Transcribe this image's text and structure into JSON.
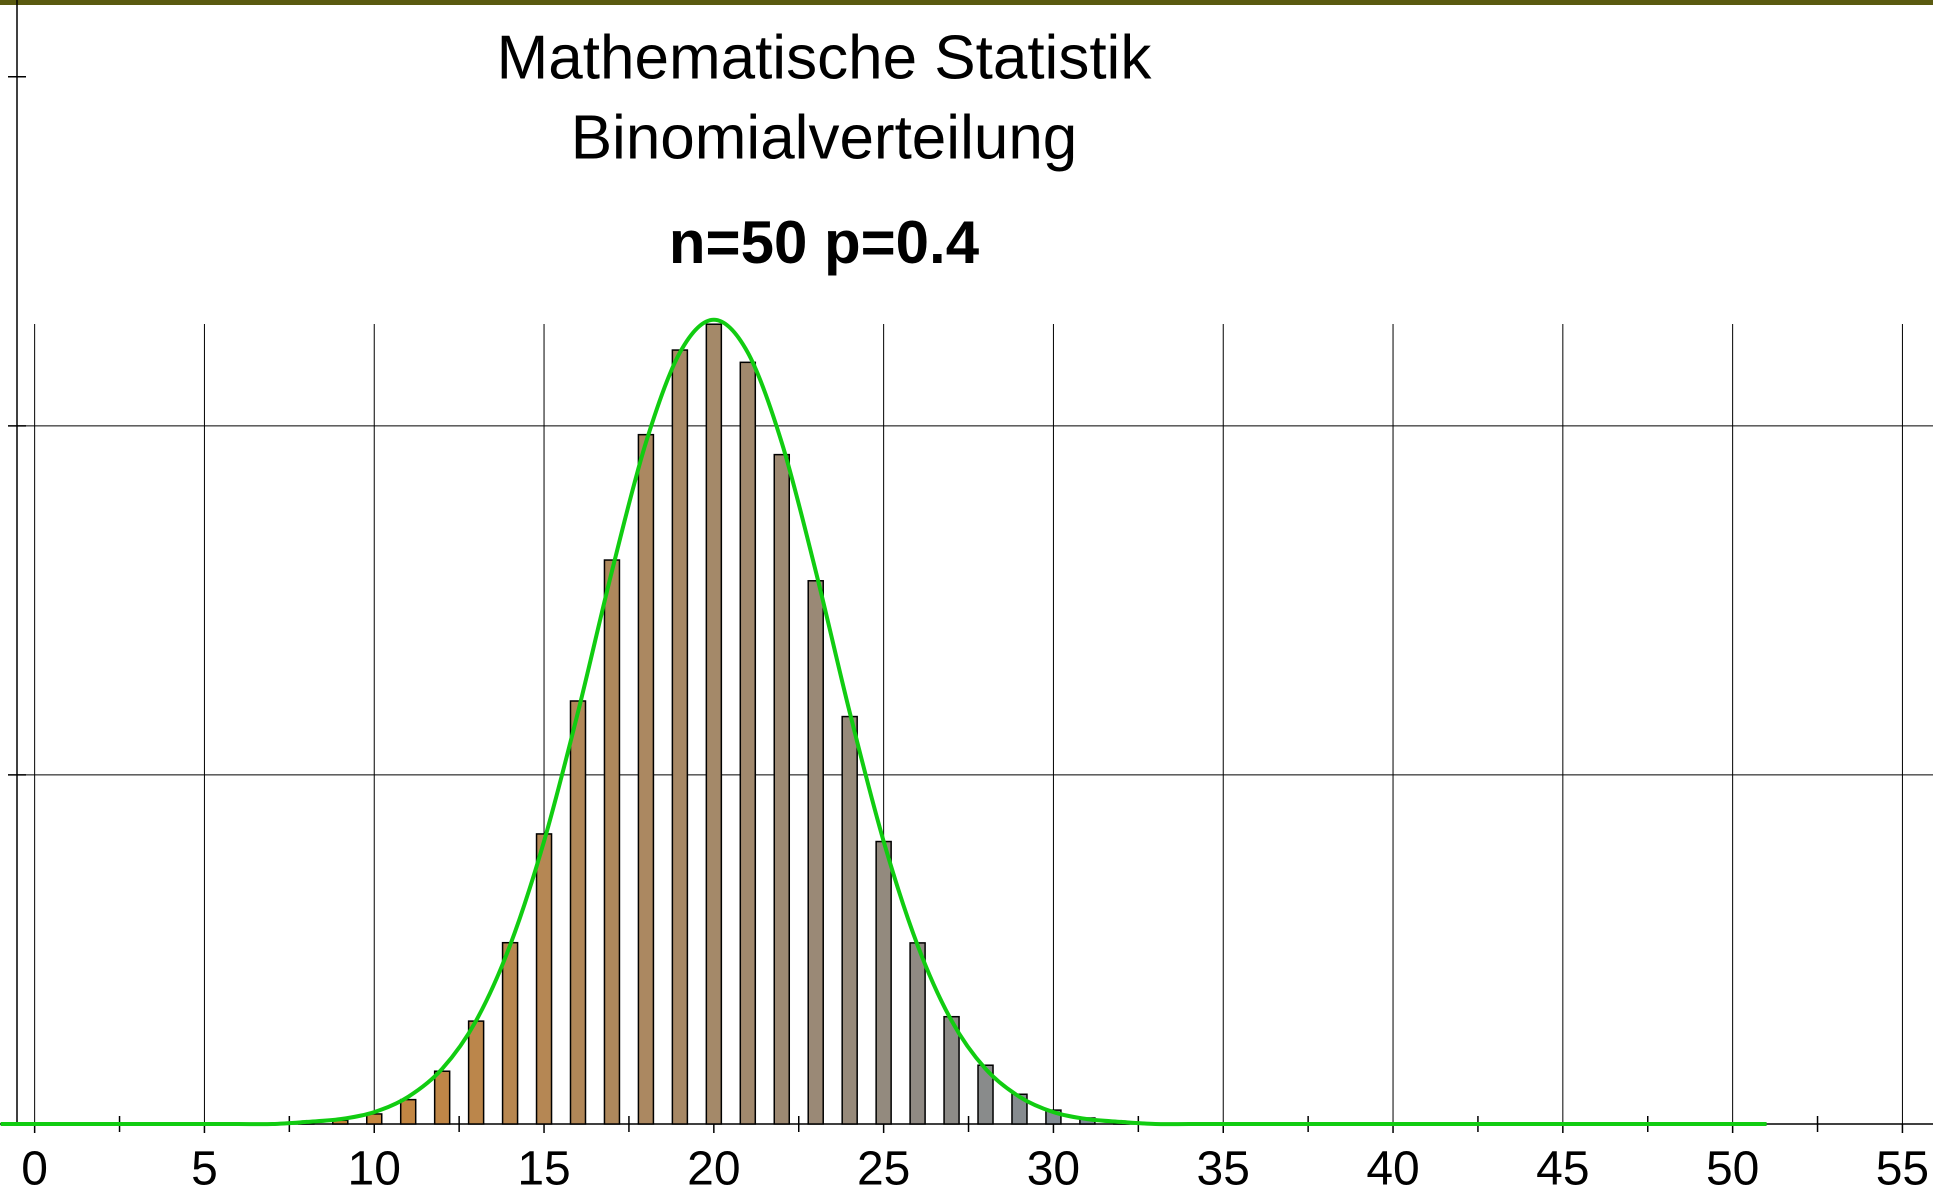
{
  "chart_data": {
    "type": "bar",
    "title": "Mathematische Statistik",
    "subtitle": "Binomialverteilung",
    "annotation": "n=50 p=0.4",
    "categories": [
      8,
      9,
      10,
      11,
      12,
      13,
      14,
      15,
      16,
      17,
      18,
      19,
      20,
      21,
      22,
      23,
      24,
      25,
      26,
      27,
      28,
      29,
      30,
      31,
      32
    ],
    "values": [
      0.00017,
      0.00053,
      0.00144,
      0.00349,
      0.00756,
      0.01474,
      0.02597,
      0.04155,
      0.06059,
      0.08078,
      0.09874,
      0.11086,
      0.11456,
      0.1091,
      0.09588,
      0.07781,
      0.05836,
      0.04046,
      0.02594,
      0.01537,
      0.00842,
      0.00426,
      0.00199,
      0.00086,
      0.00034
    ],
    "color_gradient": [
      "#cc8536",
      "#7c8c9c"
    ],
    "curve": {
      "color": "#11cc11",
      "x": [
        -1,
        0,
        1,
        2,
        3,
        4,
        5,
        6,
        7,
        8,
        9,
        10,
        11,
        12,
        13,
        14,
        15,
        16,
        17,
        18,
        19,
        20,
        21,
        22,
        23,
        24,
        25,
        26,
        27,
        28,
        29,
        30,
        31,
        32,
        33,
        34,
        35,
        36,
        37,
        38,
        39,
        40,
        41,
        42,
        43,
        44,
        45,
        46,
        47,
        48,
        49,
        50,
        51
      ],
      "values": [
        0,
        0,
        0,
        0,
        0,
        0,
        0,
        0,
        0,
        0.0003,
        0.0007,
        0.0017,
        0.0039,
        0.0079,
        0.0148,
        0.0256,
        0.0405,
        0.059,
        0.0792,
        0.0976,
        0.1105,
        0.1152,
        0.1105,
        0.0976,
        0.0792,
        0.059,
        0.0405,
        0.0256,
        0.0148,
        0.0079,
        0.0039,
        0.0017,
        0.0007,
        0.0003,
        0,
        0,
        0,
        0,
        0,
        0,
        0,
        0,
        0,
        0,
        0,
        0,
        0,
        0,
        0,
        0,
        0,
        0,
        0
      ]
    },
    "xlim": [
      -1.02,
      55.9
    ],
    "ylim": [
      0,
      0.161
    ],
    "xticks": [
      0,
      5,
      10,
      15,
      20,
      25,
      30,
      35,
      40,
      45,
      50,
      55
    ],
    "xminor_ticks": [
      2.5,
      7.5,
      12.5,
      17.5,
      22.5,
      27.5,
      32.5,
      37.5,
      42.5,
      47.5,
      52.5
    ],
    "yticks": [
      0,
      0.05,
      0.1,
      0.15
    ],
    "grid": true
  }
}
